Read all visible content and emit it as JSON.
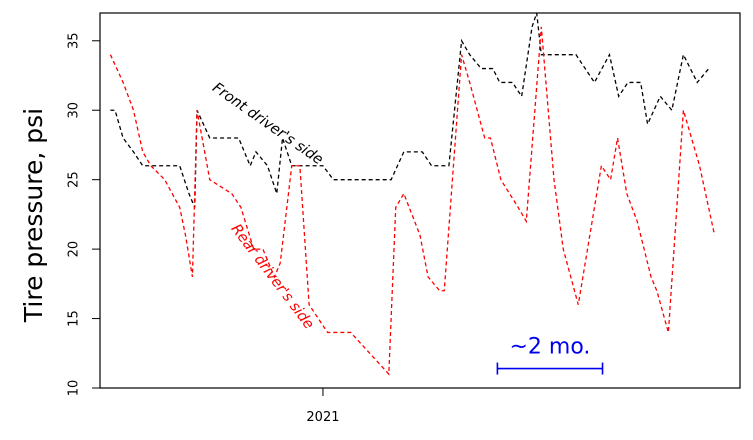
{
  "chart_data": {
    "type": "line",
    "title": "",
    "xlabel": "",
    "ylabel": "Tire pressure, psi",
    "ylim": [
      10,
      37
    ],
    "yticks": [
      10,
      15,
      20,
      25,
      30,
      35
    ],
    "xlim": [
      "2020-06-22",
      "2021-12-28"
    ],
    "xticks": [
      {
        "date": "2021-01-01",
        "label": "2021"
      }
    ],
    "grid": false,
    "legend": "none",
    "series": [
      {
        "name": "Front driver's side",
        "color": "#000000",
        "linestyle": "dashed",
        "points": [
          [
            "2020-07-01",
            30
          ],
          [
            "2020-07-05",
            30
          ],
          [
            "2020-07-12",
            28
          ],
          [
            "2020-07-21",
            27
          ],
          [
            "2020-07-29",
            26
          ],
          [
            "2020-08-24",
            26
          ],
          [
            "2020-08-30",
            26
          ],
          [
            "2020-09-07",
            24
          ],
          [
            "2020-09-12",
            23
          ],
          [
            "2020-09-14",
            30
          ],
          [
            "2020-09-25",
            28
          ],
          [
            "2020-10-20",
            28
          ],
          [
            "2020-10-30",
            26
          ],
          [
            "2020-11-04",
            27
          ],
          [
            "2020-11-14",
            26
          ],
          [
            "2020-11-22",
            24
          ],
          [
            "2020-11-27",
            28
          ],
          [
            "2020-12-05",
            26
          ],
          [
            "2020-12-12",
            26
          ],
          [
            "2021-01-01",
            26
          ],
          [
            "2021-01-10",
            25
          ],
          [
            "2021-02-20",
            25
          ],
          [
            "2021-03-01",
            25
          ],
          [
            "2021-03-12",
            27
          ],
          [
            "2021-03-28",
            27
          ],
          [
            "2021-04-05",
            26
          ],
          [
            "2021-04-20",
            26
          ],
          [
            "2021-05-01",
            35
          ],
          [
            "2021-05-08",
            34
          ],
          [
            "2021-05-18",
            33
          ],
          [
            "2021-05-28",
            33
          ],
          [
            "2021-06-03",
            32
          ],
          [
            "2021-06-14",
            32
          ],
          [
            "2021-06-22",
            31
          ],
          [
            "2021-07-01",
            36
          ],
          [
            "2021-07-05",
            37
          ],
          [
            "2021-07-09",
            34
          ],
          [
            "2021-07-31",
            34
          ],
          [
            "2021-08-08",
            34
          ],
          [
            "2021-08-24",
            32
          ],
          [
            "2021-09-06",
            34
          ],
          [
            "2021-09-14",
            31
          ],
          [
            "2021-09-22",
            32
          ],
          [
            "2021-10-03",
            32
          ],
          [
            "2021-10-09",
            29
          ],
          [
            "2021-10-20",
            31
          ],
          [
            "2021-10-30",
            30
          ],
          [
            "2021-11-09",
            34
          ],
          [
            "2021-11-21",
            32
          ],
          [
            "2021-12-01",
            33
          ]
        ]
      },
      {
        "name": "Rear driver's side",
        "color": "#ff0000",
        "linestyle": "dashed",
        "points": [
          [
            "2020-07-01",
            34
          ],
          [
            "2020-07-12",
            32
          ],
          [
            "2020-07-21",
            30
          ],
          [
            "2020-07-29",
            27
          ],
          [
            "2020-08-05",
            26
          ],
          [
            "2020-08-17",
            25
          ],
          [
            "2020-08-30",
            23
          ],
          [
            "2020-09-04",
            21
          ],
          [
            "2020-09-10",
            18
          ],
          [
            "2020-09-14",
            30
          ],
          [
            "2020-09-25",
            25
          ],
          [
            "2020-10-14",
            24
          ],
          [
            "2020-10-22",
            23
          ],
          [
            "2020-11-02",
            20
          ],
          [
            "2020-11-10",
            20
          ],
          [
            "2020-11-20",
            18
          ],
          [
            "2020-11-25",
            19
          ],
          [
            "2020-12-05",
            26
          ],
          [
            "2020-12-12",
            26
          ],
          [
            "2020-12-20",
            16
          ],
          [
            "2021-01-05",
            14
          ],
          [
            "2021-01-25",
            14
          ],
          [
            "2021-02-27",
            11
          ],
          [
            "2021-03-05",
            23
          ],
          [
            "2021-03-12",
            24
          ],
          [
            "2021-03-26",
            21
          ],
          [
            "2021-04-02",
            18
          ],
          [
            "2021-04-12",
            17
          ],
          [
            "2021-04-16",
            17
          ],
          [
            "2021-05-01",
            34
          ],
          [
            "2021-05-08",
            32
          ],
          [
            "2021-05-21",
            28
          ],
          [
            "2021-05-26",
            28
          ],
          [
            "2021-06-04",
            25
          ],
          [
            "2021-06-19",
            23
          ],
          [
            "2021-06-26",
            22
          ],
          [
            "2021-07-09",
            36
          ],
          [
            "2021-07-20",
            25
          ],
          [
            "2021-07-28",
            20
          ],
          [
            "2021-08-10",
            16
          ],
          [
            "2021-08-26",
            24
          ],
          [
            "2021-08-30",
            26
          ],
          [
            "2021-09-07",
            25
          ],
          [
            "2021-09-13",
            28
          ],
          [
            "2021-09-21",
            24
          ],
          [
            "2021-09-30",
            22
          ],
          [
            "2021-10-12",
            18
          ],
          [
            "2021-10-17",
            17
          ],
          [
            "2021-10-27",
            14
          ],
          [
            "2021-11-09",
            30
          ],
          [
            "2021-11-23",
            26
          ],
          [
            "2021-12-06",
            21
          ]
        ]
      }
    ],
    "annotations": [
      {
        "text": "Front driver's side",
        "color": "#000000",
        "at": [
          "2020-11-14",
          29.0
        ],
        "rotate": 35
      },
      {
        "text": "Rear driver's side",
        "color": "#ff0000",
        "at": [
          "2020-11-18",
          18.0
        ],
        "rotate": 53
      }
    ],
    "scale_bar": {
      "label": "~2 mo.",
      "from": "2021-06-01",
      "to": "2021-08-31",
      "y": 11.4,
      "color": "#0000ee"
    }
  }
}
